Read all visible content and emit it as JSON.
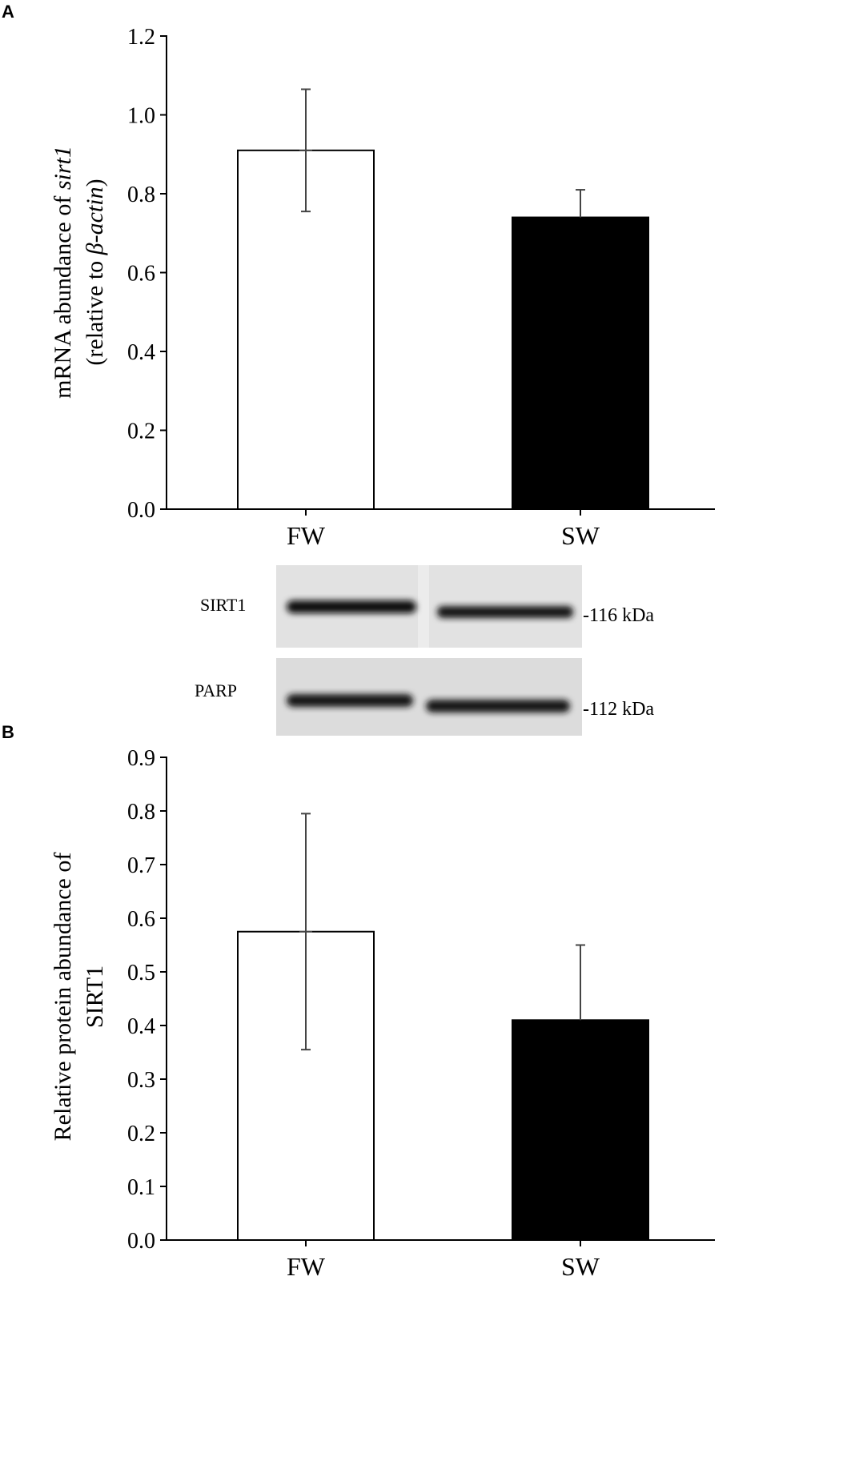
{
  "panels": {
    "a": {
      "letter": "A"
    },
    "b": {
      "letter": "B"
    }
  },
  "chart_data": [
    {
      "type": "bar",
      "panel": "A",
      "categories": [
        "FW",
        "SW"
      ],
      "values": [
        0.91,
        0.74
      ],
      "errors": [
        0.155,
        0.07
      ],
      "bar_colors": [
        "#ffffff",
        "#000000"
      ],
      "ylabel_line1_prefix": "mRNA abundance of ",
      "ylabel_line1_italic": "sirt1",
      "ylabel_line2_prefix": "(relative to ",
      "ylabel_line2_italic": "β-actin",
      "ylabel_line2_suffix": ")",
      "ylim": [
        0,
        1.2
      ],
      "yticks": [
        "0.0",
        "0.2",
        "0.4",
        "0.6",
        "0.8",
        "1.0",
        "1.2"
      ],
      "ytick_values": [
        0,
        0.2,
        0.4,
        0.6,
        0.8,
        1.0,
        1.2
      ],
      "grid": false
    },
    {
      "type": "bar",
      "panel": "B",
      "categories": [
        "FW",
        "SW"
      ],
      "values": [
        0.575,
        0.41
      ],
      "errors": [
        0.22,
        0.14
      ],
      "bar_colors": [
        "#ffffff",
        "#000000"
      ],
      "ylabel_line1": "Relative protein abundance of",
      "ylabel_line2": "SIRT1",
      "ylim": [
        0,
        0.9
      ],
      "yticks": [
        "0.0",
        "0.1",
        "0.2",
        "0.3",
        "0.4",
        "0.5",
        "0.6",
        "0.7",
        "0.8",
        "0.9"
      ],
      "ytick_values": [
        0,
        0.1,
        0.2,
        0.3,
        0.4,
        0.5,
        0.6,
        0.7,
        0.8,
        0.9
      ],
      "grid": false
    }
  ],
  "blot": {
    "rows": [
      {
        "label": "SIRT1",
        "size": "-116  kDa"
      },
      {
        "label": "PARP",
        "size": "-112  kDa"
      }
    ]
  }
}
